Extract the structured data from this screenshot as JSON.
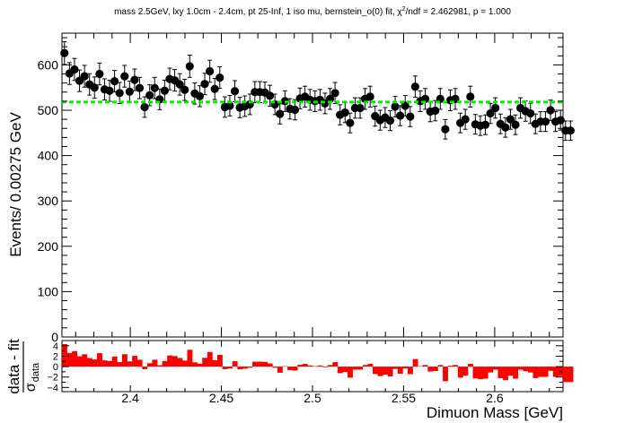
{
  "chart_data": {
    "type": "scatter",
    "title": "mass 2.5GeV, lxy 1.0cm - 2.4cm, pt 25-Inf, 1 iso mu, bernstein_o(0) fit, χ²/ndf = 2.462981, p = 1.000",
    "title_parts": {
      "pre": "mass 2.5GeV, lxy 1.0cm - 2.4cm, pt 25-Inf, 1 iso mu, bernstein_o(0) fit, χ",
      "sup": "2",
      "post": "/ndf = 2.462981, p = 1.000"
    },
    "xlabel": "Dimuon Mass [GeV]",
    "ylabel": "Events/ 0.00275 GeV",
    "xlim": [
      2.3625,
      2.6375
    ],
    "ylim": [
      0,
      670
    ],
    "x_ticks": [
      "2.4",
      "2.45",
      "2.5",
      "2.55",
      "2.6"
    ],
    "y_ticks": [
      "0",
      "100",
      "200",
      "300",
      "400",
      "500",
      "600"
    ],
    "bin_width": 0.00275,
    "series": [
      {
        "type": "points_with_errors",
        "x_start": 2.363875,
        "values": [
          626,
          581,
          590,
          565,
          575,
          557,
          550,
          580,
          546,
          543,
          564,
          538,
          575,
          541,
          567,
          549,
          507,
          533,
          549,
          524,
          543,
          569,
          566,
          557,
          545,
          597,
          537,
          531,
          558,
          586,
          547,
          572,
          507,
          510,
          542,
          506,
          509,
          513,
          540,
          540,
          539,
          532,
          513,
          492,
          520,
          503,
          501,
          526,
          530,
          523,
          520,
          523,
          515,
          525,
          538,
          490,
          495,
          472,
          505,
          505,
          525,
          530,
          487,
          478,
          484,
          477,
          508,
          488,
          510,
          486,
          552,
          520,
          525,
          497,
          499,
          525,
          458,
          522,
          525,
          472,
          480,
          530,
          469,
          466,
          468,
          493,
          505,
          470,
          462,
          480,
          468,
          505,
          498,
          493,
          470,
          475,
          475,
          500,
          475,
          478,
          455,
          455
        ],
        "color": "#000000"
      },
      {
        "type": "fit",
        "name": "bernstein_o(0)",
        "value": 518,
        "color": "#00ee00",
        "style": "dashed"
      }
    ],
    "ratio_panel": {
      "ylabel_num": "data - fit",
      "ylabel_den": "σ",
      "ylabel_sub": "data",
      "ylim": [
        -4.8,
        5.0
      ],
      "y_ticks": [
        "4",
        "2",
        "0",
        "−2",
        "−4"
      ],
      "bar_color": "#ff0000"
    }
  }
}
